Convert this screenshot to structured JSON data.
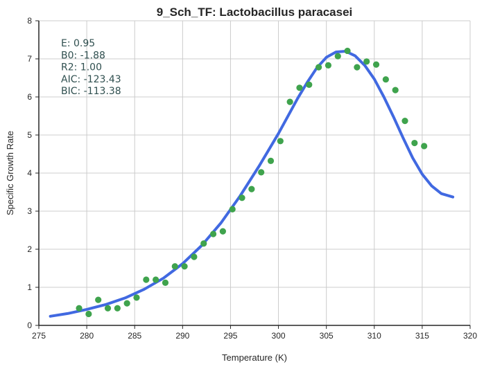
{
  "chart_data": {
    "type": "scatter",
    "title": "9_Sch_TF: Lactobacillus paracasei",
    "xlabel": "Temperature (K)",
    "ylabel": "Specific Growth Rate",
    "xlim": [
      275,
      320
    ],
    "ylim": [
      0,
      8
    ],
    "x_ticks": [
      275,
      280,
      285,
      290,
      295,
      300,
      305,
      310,
      315,
      320
    ],
    "y_ticks": [
      0,
      1,
      2,
      3,
      4,
      5,
      6,
      7,
      8
    ],
    "grid": true,
    "stats": [
      "E:  0.95",
      "B0:  -1.88",
      "R2:  1.00",
      "AIC: -123.43",
      "BIC: -113.38"
    ],
    "colors": {
      "points": "#3fa34d",
      "fit": "#4169e1"
    },
    "series": [
      {
        "kind": "observed-points",
        "x": [
          279.2,
          280.2,
          281.2,
          282.2,
          283.2,
          284.2,
          285.2,
          286.2,
          287.2,
          288.2,
          289.2,
          290.2,
          291.2,
          292.2,
          293.2,
          294.2,
          295.2,
          296.2,
          297.2,
          298.2,
          299.2,
          300.2,
          301.2,
          302.2,
          303.2,
          304.2,
          305.2,
          306.2,
          307.2,
          308.2,
          309.2,
          310.2,
          311.2,
          312.2,
          313.2,
          314.2,
          315.2
        ],
        "y": [
          0.45,
          0.3,
          0.67,
          0.45,
          0.45,
          0.58,
          0.73,
          1.2,
          1.2,
          1.12,
          1.55,
          1.55,
          1.8,
          2.15,
          2.4,
          2.47,
          3.05,
          3.35,
          3.58,
          4.02,
          4.32,
          4.84,
          5.87,
          6.24,
          6.32,
          6.78,
          6.83,
          7.07,
          7.21,
          6.78,
          6.93,
          6.85,
          6.46,
          6.18,
          5.37,
          4.79,
          4.71
        ]
      },
      {
        "kind": "fitted-curve",
        "x": [
          276.2,
          278,
          280,
          282,
          284,
          286,
          288,
          290,
          292,
          294,
          296,
          298,
          300,
          302,
          303,
          304,
          305,
          306,
          307,
          308,
          309,
          310,
          311,
          312,
          313,
          314,
          315,
          316,
          317,
          318.2
        ],
        "y": [
          0.24,
          0.31,
          0.42,
          0.55,
          0.72,
          0.95,
          1.24,
          1.62,
          2.1,
          2.69,
          3.4,
          4.19,
          5.04,
          5.96,
          6.38,
          6.76,
          7.04,
          7.18,
          7.2,
          7.08,
          6.83,
          6.47,
          6.0,
          5.48,
          4.93,
          4.4,
          3.97,
          3.66,
          3.46,
          3.37
        ]
      }
    ]
  }
}
